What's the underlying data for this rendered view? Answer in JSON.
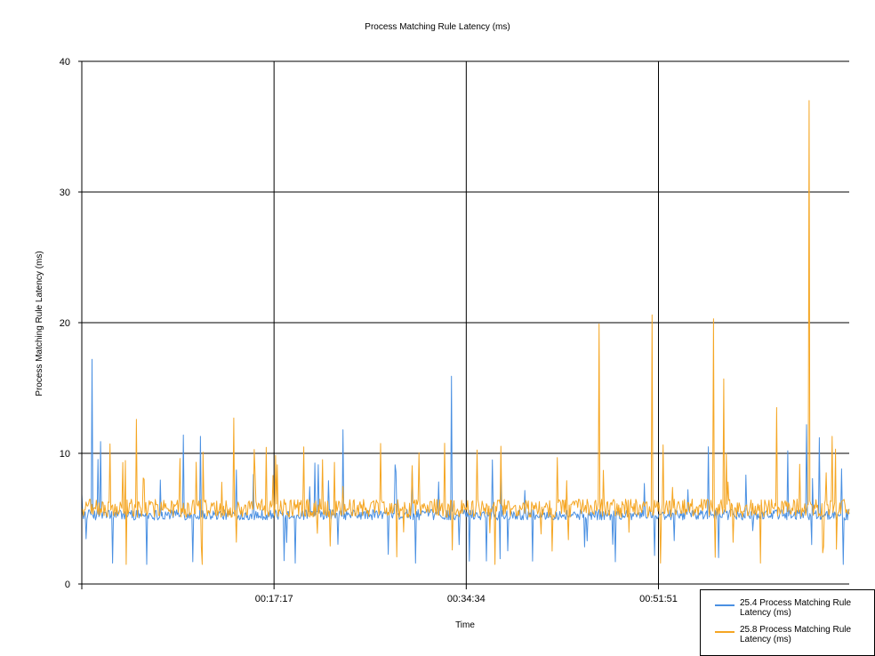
{
  "chart_data": {
    "type": "line",
    "title": "Process Matching Rule Latency (ms)",
    "xlabel": "Time",
    "ylabel": "Process Matching Rule Latency (ms)",
    "ylim": [
      0,
      40
    ],
    "yticks": [
      "0",
      "10",
      "20",
      "30",
      "40"
    ],
    "xlim": [
      "00:00:00",
      "01:09:00"
    ],
    "xticks": [
      "00:17:17",
      "00:34:34",
      "00:51:51"
    ],
    "grid": true,
    "legend_position": "bottom-right",
    "series": [
      {
        "name": "25.4 Process Matching Rule Latency (ms)",
        "color": "#4a90e2",
        "baseline": 5.3,
        "spikes": [
          {
            "t": "00:00:54",
            "v": 17.2
          },
          {
            "t": "00:01:40",
            "v": 10.9
          },
          {
            "t": "00:09:10",
            "v": 11.4
          },
          {
            "t": "00:10:40",
            "v": 11.3
          },
          {
            "t": "00:23:30",
            "v": 11.8
          },
          {
            "t": "00:33:15",
            "v": 15.9
          },
          {
            "t": "00:56:20",
            "v": 10.5
          },
          {
            "t": "01:05:10",
            "v": 12.2
          },
          {
            "t": "01:06:20",
            "v": 11.2
          }
        ],
        "dips": [
          {
            "t": "00:02:45",
            "v": 1.6
          },
          {
            "t": "00:05:50",
            "v": 1.5
          },
          {
            "t": "00:10:00",
            "v": 1.7
          },
          {
            "t": "00:19:10",
            "v": 1.6
          },
          {
            "t": "00:30:00",
            "v": 1.6
          },
          {
            "t": "00:48:00",
            "v": 1.7
          },
          {
            "t": "01:08:30",
            "v": 1.5
          }
        ]
      },
      {
        "name": "25.8 Process Matching Rule Latency (ms)",
        "color": "#f5a623",
        "baseline": 5.8,
        "spikes": [
          {
            "t": "00:04:55",
            "v": 12.6
          },
          {
            "t": "00:13:40",
            "v": 12.7
          },
          {
            "t": "00:46:30",
            "v": 19.9
          },
          {
            "t": "00:51:15",
            "v": 20.6
          },
          {
            "t": "00:56:50",
            "v": 20.3
          },
          {
            "t": "00:57:45",
            "v": 15.7
          },
          {
            "t": "01:02:30",
            "v": 13.5
          },
          {
            "t": "01:05:25",
            "v": 37.0
          },
          {
            "t": "01:07:30",
            "v": 11.3
          }
        ],
        "dips": [
          {
            "t": "00:04:00",
            "v": 1.5
          },
          {
            "t": "00:10:50",
            "v": 1.5
          },
          {
            "t": "00:37:10",
            "v": 1.5
          },
          {
            "t": "00:52:00",
            "v": 1.6
          },
          {
            "t": "01:01:00",
            "v": 1.6
          }
        ]
      }
    ]
  },
  "legend": {
    "items": [
      {
        "label": "25.4 Process Matching Rule Latency (ms)",
        "color": "#4a90e2"
      },
      {
        "label": "25.8 Process Matching Rule Latency (ms)",
        "color": "#f5a623"
      }
    ]
  }
}
